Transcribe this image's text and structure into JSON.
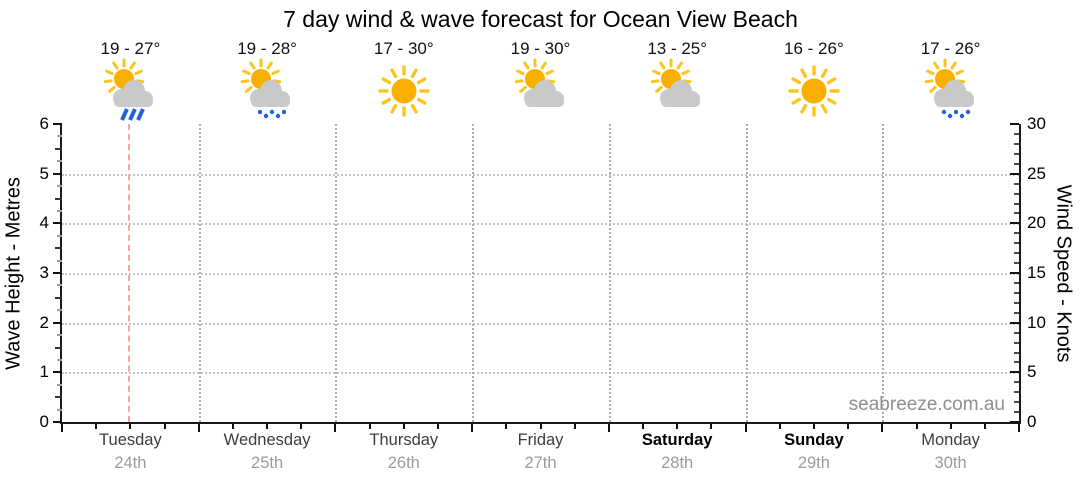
{
  "title": "7 day wind & wave forecast for Ocean View Beach",
  "watermark": "seabreeze.com.au",
  "left_axis": {
    "label": "Wave Height - Metres",
    "ticks": [
      "0",
      "1",
      "2",
      "3",
      "4",
      "5",
      "6"
    ]
  },
  "right_axis": {
    "label": "Wind Speed - Knots",
    "ticks": [
      "0",
      "5",
      "10",
      "15",
      "20",
      "25",
      "30"
    ]
  },
  "days": [
    {
      "name": "Tuesday",
      "date": "24th",
      "temp": "19 - 27°",
      "icon": "sun-cloud-rain",
      "weekend": false,
      "current": true
    },
    {
      "name": "Wednesday",
      "date": "25th",
      "temp": "19 - 28°",
      "icon": "sun-cloud-drizzle",
      "weekend": false,
      "current": false
    },
    {
      "name": "Thursday",
      "date": "26th",
      "temp": "17 - 30°",
      "icon": "sunny",
      "weekend": false,
      "current": false
    },
    {
      "name": "Friday",
      "date": "27th",
      "temp": "19 - 30°",
      "icon": "sun-cloud",
      "weekend": false,
      "current": false
    },
    {
      "name": "Saturday",
      "date": "28th",
      "temp": "13 - 25°",
      "icon": "sun-cloud",
      "weekend": true,
      "current": false
    },
    {
      "name": "Sunday",
      "date": "29th",
      "temp": "16 - 26°",
      "icon": "sunny",
      "weekend": true,
      "current": false
    },
    {
      "name": "Monday",
      "date": "30th",
      "temp": "17 - 26°",
      "icon": "sun-cloud-drizzle",
      "weekend": false,
      "current": false
    }
  ],
  "colors": {
    "sun_disc": "#F8AF00",
    "sun_ray": "#FBC51D",
    "cloud": "#C9C9C9",
    "rain_blue": "#2263DD",
    "now_marker_pink": "#F6A69E",
    "grid_gray": "#C3C3C3",
    "day_line_gray": "#AEAEAE",
    "date_gray": "#9B9B9B",
    "watermark_gray": "#8F8F8F",
    "axis_black": "#1A1A1A"
  },
  "chart_data": {
    "type": "line",
    "title": "7 day wind & wave forecast for Ocean View Beach",
    "categories": [
      "Tuesday 24th",
      "Wednesday 25th",
      "Thursday 26th",
      "Friday 27th",
      "Saturday 28th",
      "Sunday 29th",
      "Monday 30th"
    ],
    "series": [],
    "axes": {
      "left": {
        "label": "Wave Height - Metres",
        "range": [
          0,
          6
        ],
        "ticks": [
          0,
          1,
          2,
          3,
          4,
          5,
          6
        ]
      },
      "right": {
        "label": "Wind Speed - Knots",
        "range": [
          0,
          30
        ],
        "ticks": [
          0,
          5,
          10,
          15,
          20,
          25,
          30
        ]
      }
    },
    "grid": true,
    "legend": false,
    "annotations": {
      "temperature_ranges_c": [
        [
          19,
          27
        ],
        [
          19,
          28
        ],
        [
          17,
          30
        ],
        [
          19,
          30
        ],
        [
          13,
          25
        ],
        [
          16,
          26
        ],
        [
          17,
          26
        ]
      ],
      "conditions": [
        "rain-showers",
        "light-showers",
        "sunny",
        "partly-cloudy",
        "partly-cloudy",
        "sunny",
        "light-showers"
      ],
      "current_time_marker_day": "Tuesday",
      "watermark": "seabreeze.com.au"
    }
  }
}
